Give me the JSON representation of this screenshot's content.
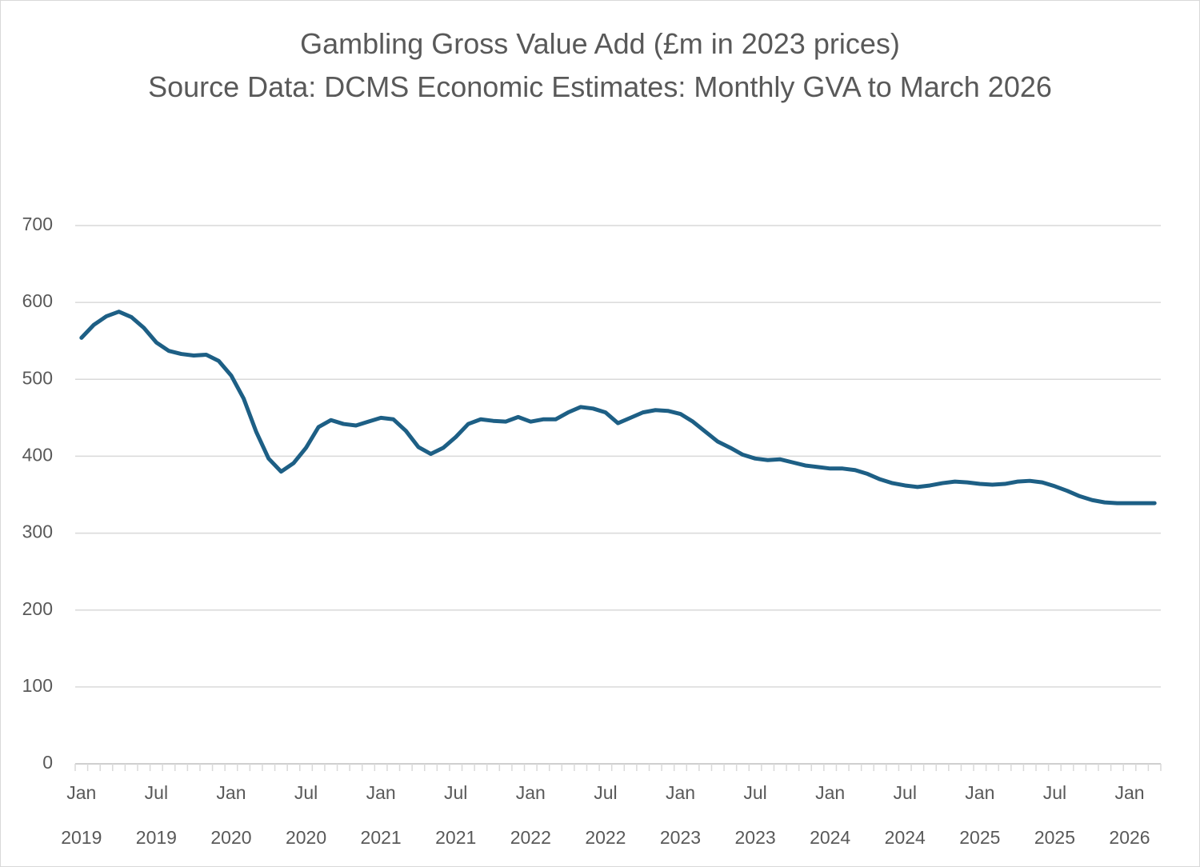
{
  "chart_data": {
    "type": "line",
    "title": "Gambling Gross Value Add (£m in 2023 prices)",
    "subtitle": "Source Data: DCMS Economic Estimates: Monthly GVA to March 2026",
    "categories": [
      "Jan 2019",
      null,
      null,
      null,
      null,
      null,
      "Jul 2019",
      null,
      null,
      null,
      null,
      null,
      "Jan 2020",
      null,
      null,
      null,
      null,
      null,
      "Jul 2020",
      null,
      null,
      null,
      null,
      null,
      "Jan 2021",
      null,
      null,
      null,
      null,
      null,
      "Jul 2021",
      null,
      null,
      null,
      null,
      null,
      "Jan 2022",
      null,
      null,
      null,
      null,
      null,
      "Jul 2022",
      null,
      null,
      null,
      null,
      null,
      "Jan 2023",
      null,
      null,
      null,
      null,
      null,
      "Jul 2023",
      null,
      null,
      null,
      null,
      null,
      "Jan 2024",
      null,
      null,
      null,
      null,
      null,
      "Jul 2024",
      null,
      null,
      null,
      null,
      null,
      "Jan 2025",
      null,
      null,
      null,
      null,
      null,
      "Jul 2025",
      null,
      null,
      null,
      null,
      null,
      "Jan 2026",
      null,
      null
    ],
    "values": [
      554,
      571,
      582,
      588,
      581,
      567,
      548,
      537,
      533,
      531,
      532,
      524,
      505,
      475,
      432,
      397,
      380,
      391,
      411,
      438,
      447,
      442,
      440,
      445,
      450,
      448,
      433,
      412,
      403,
      411,
      425,
      442,
      448,
      446,
      445,
      451,
      445,
      448,
      448,
      457,
      464,
      462,
      457,
      443,
      450,
      457,
      460,
      459,
      455,
      445,
      432,
      419,
      411,
      402,
      397,
      395,
      396,
      392,
      388,
      386,
      384,
      384,
      382,
      377,
      370,
      365,
      362,
      360,
      362,
      365,
      367,
      366,
      364,
      363,
      364,
      367,
      368,
      366,
      361,
      355,
      348,
      343,
      340,
      339,
      339,
      339,
      339
    ],
    "color": "#1d5f85",
    "ylim": [
      0,
      700
    ],
    "yticks": [
      0,
      100,
      200,
      300,
      400,
      500,
      600,
      700
    ],
    "grid": true
  }
}
